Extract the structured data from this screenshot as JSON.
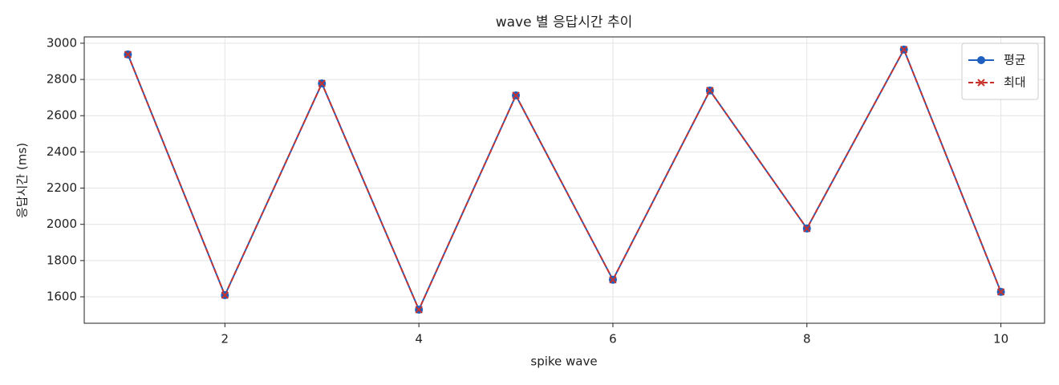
{
  "chart_data": {
    "type": "line",
    "title": "wave 별 응답시간 추이",
    "xlabel": "spike wave",
    "ylabel": "응답시간 (ms)",
    "x": [
      1,
      2,
      3,
      4,
      5,
      6,
      7,
      8,
      9,
      10
    ],
    "series": [
      {
        "name": "평균",
        "color": "#1f5fbf",
        "marker": "o",
        "linestyle": "solid",
        "values": [
          2938,
          1609,
          2778,
          1529,
          2712,
          1694,
          2739,
          1977,
          2965,
          1627
        ]
      },
      {
        "name": "최대",
        "color": "#c8322d",
        "marker": "x",
        "linestyle": "dashed",
        "values": [
          2938,
          1609,
          2778,
          1529,
          2712,
          1694,
          2739,
          1977,
          2965,
          1627
        ]
      }
    ],
    "xlim": [
      0.55,
      10.45
    ],
    "xticks": [
      2,
      4,
      6,
      8,
      10
    ],
    "ylim": [
      1454,
      3035
    ],
    "yticks": [
      1600,
      1800,
      2000,
      2200,
      2400,
      2600,
      2800,
      3000
    ],
    "grid": true,
    "legend": "upper right"
  }
}
